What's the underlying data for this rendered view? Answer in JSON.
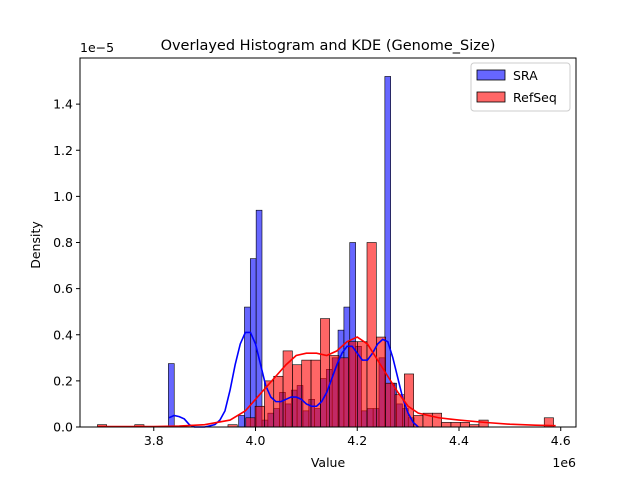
{
  "chart_data": {
    "type": "histogram",
    "title": "Overlayed Histogram and KDE (Genome_Size)",
    "xlabel": "Value",
    "ylabel": "Density",
    "x_offset_label": "1e6",
    "y_offset_label": "1e−5",
    "xlim": [
      3.655,
      4.63
    ],
    "ylim": [
      0,
      1.6
    ],
    "x_ticks": [
      3.8,
      4.0,
      4.2,
      4.4,
      4.6
    ],
    "x_tick_labels": [
      "3.8",
      "4.0",
      "4.2",
      "4.4",
      "4.6"
    ],
    "y_ticks": [
      0.0,
      0.2,
      0.4,
      0.6,
      0.8,
      1.0,
      1.2,
      1.4
    ],
    "y_tick_labels": [
      "0.0",
      "0.2",
      "0.4",
      "0.6",
      "0.8",
      "1.0",
      "1.2",
      "1.4"
    ],
    "grid": false,
    "legend_position": "top-right",
    "series": [
      {
        "name": "SRA",
        "color": "#0000ff",
        "bin_width": 0.0115,
        "bins": [
          {
            "x": 3.8345,
            "y": 0.275
          },
          {
            "x": 3.9725,
            "y": 0.05
          },
          {
            "x": 3.984,
            "y": 0.52
          },
          {
            "x": 3.9955,
            "y": 0.73
          },
          {
            "x": 4.007,
            "y": 0.94
          },
          {
            "x": 4.0185,
            "y": 0.03
          },
          {
            "x": 4.03,
            "y": 0.06
          },
          {
            "x": 4.0415,
            "y": 0.08
          },
          {
            "x": 4.053,
            "y": 0.15
          },
          {
            "x": 4.0645,
            "y": 0.1
          },
          {
            "x": 4.076,
            "y": 0.16
          },
          {
            "x": 4.0875,
            "y": 0.18
          },
          {
            "x": 4.099,
            "y": 0.07
          },
          {
            "x": 4.1105,
            "y": 0.12
          },
          {
            "x": 4.122,
            "y": 0.08
          },
          {
            "x": 4.1335,
            "y": 0.21
          },
          {
            "x": 4.145,
            "y": 0.25
          },
          {
            "x": 4.1565,
            "y": 0.3
          },
          {
            "x": 4.168,
            "y": 0.42
          },
          {
            "x": 4.1795,
            "y": 0.52
          },
          {
            "x": 4.191,
            "y": 0.8
          },
          {
            "x": 4.2025,
            "y": 0.35
          },
          {
            "x": 4.214,
            "y": 0.07
          },
          {
            "x": 4.2255,
            "y": 0.08
          },
          {
            "x": 4.237,
            "y": 0.08
          },
          {
            "x": 4.2485,
            "y": 0.3
          },
          {
            "x": 4.26,
            "y": 1.52
          },
          {
            "x": 4.2715,
            "y": 0.19
          },
          {
            "x": 4.283,
            "y": 0.1
          },
          {
            "x": 4.2945,
            "y": 0.08
          },
          {
            "x": 4.306,
            "y": 0.04
          }
        ],
        "kde_x": [
          3.83,
          3.84,
          3.85,
          3.86,
          3.87,
          3.88,
          3.89,
          3.9,
          3.91,
          3.92,
          3.93,
          3.94,
          3.95,
          3.96,
          3.97,
          3.98,
          3.99,
          4.0,
          4.01,
          4.02,
          4.03,
          4.04,
          4.05,
          4.06,
          4.07,
          4.08,
          4.09,
          4.1,
          4.11,
          4.12,
          4.13,
          4.14,
          4.15,
          4.16,
          4.17,
          4.18,
          4.19,
          4.2,
          4.21,
          4.22,
          4.23,
          4.24,
          4.25,
          4.26,
          4.27,
          4.28,
          4.29,
          4.3,
          4.31,
          4.32
        ],
        "kde_y": [
          0.04,
          0.05,
          0.045,
          0.035,
          0.01,
          0.0,
          0.0,
          0.0,
          0.005,
          0.01,
          0.03,
          0.07,
          0.16,
          0.27,
          0.36,
          0.41,
          0.41,
          0.36,
          0.27,
          0.18,
          0.13,
          0.11,
          0.11,
          0.12,
          0.13,
          0.13,
          0.12,
          0.1,
          0.09,
          0.09,
          0.11,
          0.15,
          0.21,
          0.27,
          0.32,
          0.35,
          0.35,
          0.32,
          0.29,
          0.29,
          0.32,
          0.36,
          0.38,
          0.37,
          0.3,
          0.21,
          0.12,
          0.06,
          0.02,
          0.0
        ]
      },
      {
        "name": "RefSeq",
        "color": "#ff0000",
        "bin_width": 0.0183,
        "bins": [
          {
            "x": 3.6983,
            "y": 0.01
          },
          {
            "x": 3.7717,
            "y": 0.01
          },
          {
            "x": 3.955,
            "y": 0.01
          },
          {
            "x": 3.99,
            "y": 0.04
          },
          {
            "x": 4.0083,
            "y": 0.09
          },
          {
            "x": 4.0267,
            "y": 0.2
          },
          {
            "x": 4.045,
            "y": 0.22
          },
          {
            "x": 4.0633,
            "y": 0.33
          },
          {
            "x": 4.0817,
            "y": 0.27
          },
          {
            "x": 4.1,
            "y": 0.29
          },
          {
            "x": 4.1183,
            "y": 0.29
          },
          {
            "x": 4.1367,
            "y": 0.47
          },
          {
            "x": 4.155,
            "y": 0.31
          },
          {
            "x": 4.1733,
            "y": 0.3
          },
          {
            "x": 4.1917,
            "y": 0.37
          },
          {
            "x": 4.21,
            "y": 0.37
          },
          {
            "x": 4.2283,
            "y": 0.8
          },
          {
            "x": 4.2467,
            "y": 0.39
          },
          {
            "x": 4.265,
            "y": 0.19
          },
          {
            "x": 4.2833,
            "y": 0.14
          },
          {
            "x": 4.3017,
            "y": 0.23
          },
          {
            "x": 4.32,
            "y": 0.05
          },
          {
            "x": 4.3383,
            "y": 0.06
          },
          {
            "x": 4.3567,
            "y": 0.06
          },
          {
            "x": 4.375,
            "y": 0.02
          },
          {
            "x": 4.3933,
            "y": 0.02
          },
          {
            "x": 4.4117,
            "y": 0.02
          },
          {
            "x": 4.43,
            "y": 0.01
          },
          {
            "x": 4.4483,
            "y": 0.03
          },
          {
            "x": 4.5767,
            "y": 0.04
          }
        ],
        "kde_x": [
          3.69,
          3.75,
          3.8,
          3.85,
          3.9,
          3.95,
          3.98,
          4.0,
          4.02,
          4.04,
          4.06,
          4.08,
          4.1,
          4.12,
          4.14,
          4.16,
          4.18,
          4.2,
          4.22,
          4.24,
          4.26,
          4.28,
          4.3,
          4.32,
          4.34,
          4.36,
          4.38,
          4.4,
          4.45,
          4.5,
          4.55,
          4.59
        ],
        "kde_y": [
          0.002,
          0.002,
          0.002,
          0.004,
          0.01,
          0.03,
          0.07,
          0.12,
          0.17,
          0.22,
          0.27,
          0.31,
          0.32,
          0.32,
          0.31,
          0.33,
          0.37,
          0.39,
          0.36,
          0.29,
          0.22,
          0.15,
          0.09,
          0.06,
          0.05,
          0.04,
          0.035,
          0.03,
          0.02,
          0.012,
          0.008,
          0.006
        ]
      }
    ]
  }
}
